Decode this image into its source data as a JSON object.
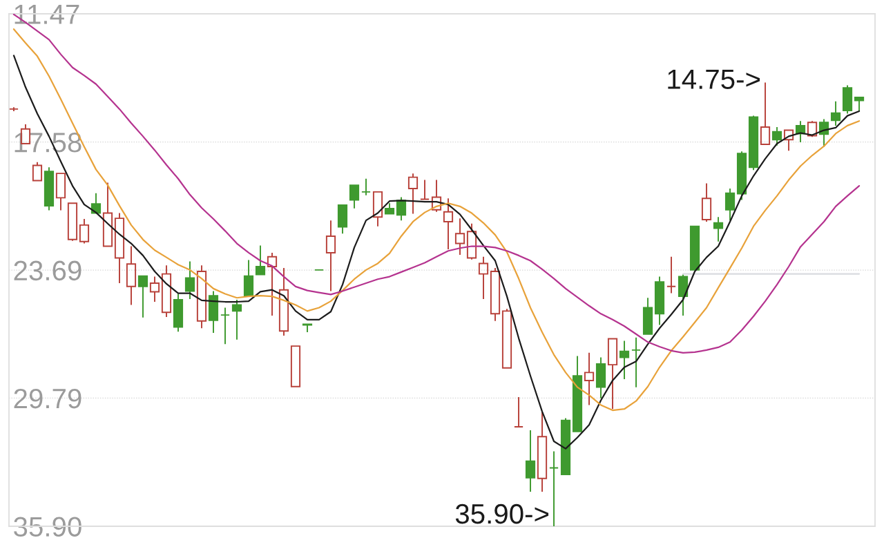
{
  "chart_data": {
    "type": "candlestick",
    "categories": [
      null,
      null,
      null,
      null,
      null,
      null,
      null,
      null,
      null,
      null,
      null,
      null,
      null,
      null,
      null,
      null,
      null,
      null,
      null,
      null,
      null,
      null,
      null,
      null,
      null,
      null,
      null,
      null,
      null,
      null,
      null,
      null,
      null,
      null,
      null,
      null,
      null,
      null,
      null,
      null,
      null,
      null,
      null,
      null,
      null,
      null,
      null,
      null,
      null,
      null,
      null,
      null,
      null,
      null,
      null,
      null,
      null,
      null,
      null,
      null,
      null,
      null,
      null,
      null,
      null,
      null,
      null,
      null,
      null,
      null,
      null,
      null,
      null
    ],
    "ohlc": [
      [
        16.01,
        16.11,
        15.92,
        16.01
      ],
      [
        16.96,
        17.66,
        16.74,
        17.66
      ],
      [
        18.7,
        19.42,
        18.54,
        19.42
      ],
      [
        20.62,
        20.84,
        18.79,
        18.98
      ],
      [
        19.08,
        20.84,
        19.08,
        20.24
      ],
      [
        20.5,
        22.29,
        20.5,
        22.23
      ],
      [
        21.54,
        22.42,
        21.25,
        22.33
      ],
      [
        20.97,
        21.0,
        20.02,
        20.53
      ],
      [
        20.97,
        22.55,
        19.52,
        22.55
      ],
      [
        21.22,
        24.31,
        20.97,
        23.11
      ],
      [
        23.4,
        25.35,
        22.55,
        24.47
      ],
      [
        24.47,
        25.95,
        23.97,
        23.97
      ],
      [
        24.31,
        25.2,
        24.0,
        24.72
      ],
      [
        23.87,
        25.92,
        23.46,
        25.7
      ],
      [
        26.4,
        26.62,
        24.82,
        25.1
      ],
      [
        24.69,
        25.07,
        23.27,
        24.06
      ],
      [
        23.75,
        26.46,
        23.46,
        26.11
      ],
      [
        26.08,
        26.68,
        24.69,
        24.91
      ],
      [
        25.83,
        27.22,
        25.48,
        25.83
      ],
      [
        25.64,
        27.0,
        25.1,
        25.35
      ],
      [
        24.91,
        24.91,
        23.21,
        23.97
      ],
      [
        23.9,
        23.9,
        22.52,
        23.52
      ],
      [
        23.05,
        25.86,
        22.86,
        23.52
      ],
      [
        24.63,
        26.81,
        23.59,
        26.59
      ],
      [
        27.31,
        29.24,
        27.31,
        29.24
      ],
      [
        26.3,
        26.65,
        26.27,
        26.27
      ],
      [
        23.68,
        23.68,
        23.68,
        23.68
      ],
      [
        22.07,
        24.69,
        21.32,
        22.86
      ],
      [
        21.63,
        21.95,
        20.59,
        20.59
      ],
      [
        20.34,
        20.75,
        19.64,
        19.64
      ],
      [
        19.96,
        20.12,
        19.33,
        19.96
      ],
      [
        19.96,
        21.6,
        19.96,
        21.16
      ],
      [
        21.0,
        21.0,
        20.5,
        20.75
      ],
      [
        21.06,
        21.32,
        20.21,
        20.37
      ],
      [
        19.26,
        21.0,
        19.08,
        19.8
      ],
      [
        20.31,
        20.31,
        19.39,
        20.31
      ],
      [
        20.21,
        20.91,
        19.39,
        20.81
      ],
      [
        20.91,
        22.7,
        20.27,
        21.38
      ],
      [
        21.95,
        22.96,
        21.22,
        22.42
      ],
      [
        21.85,
        23.18,
        21.47,
        23.11
      ],
      [
        23.37,
        25.07,
        23.05,
        23.87
      ],
      [
        23.75,
        26.11,
        23.59,
        25.77
      ],
      [
        25.64,
        28.35,
        25.54,
        28.35
      ],
      [
        31.16,
        31.16,
        29.74,
        31.16
      ],
      [
        33.59,
        34.25,
        31.32,
        32.8
      ],
      [
        31.63,
        34.25,
        30.43,
        33.62
      ],
      [
        33.12,
        35.9,
        32.33,
        33.12
      ],
      [
        33.43,
        33.43,
        30.75,
        30.85
      ],
      [
        31.38,
        31.38,
        27.78,
        28.73
      ],
      [
        28.57,
        30.12,
        27.63,
        28.95
      ],
      [
        29.27,
        29.8,
        27.85,
        28.16
      ],
      [
        26.96,
        30.31,
        26.96,
        28.2
      ],
      [
        27.85,
        28.89,
        27.06,
        27.56
      ],
      [
        27.5,
        29.27,
        26.9,
        27.5
      ],
      [
        26.74,
        26.74,
        25.01,
        25.48
      ],
      [
        25.77,
        26.3,
        24.0,
        24.25
      ],
      [
        24.47,
        24.79,
        23.05,
        24.47
      ],
      [
        24.94,
        25.86,
        23.9,
        24.0
      ],
      [
        23.68,
        23.68,
        21.6,
        21.6
      ],
      [
        20.27,
        21.38,
        19.55,
        21.28
      ],
      [
        21.69,
        22.33,
        21.16,
        21.44
      ],
      [
        20.81,
        21.32,
        19.8,
        20.02
      ],
      [
        20.05,
        20.34,
        18.03,
        18.13
      ],
      [
        18.79,
        18.92,
        16.33,
        16.39
      ],
      [
        16.87,
        17.69,
        14.75,
        17.69
      ],
      [
        17.47,
        17.75,
        16.87,
        17.09
      ],
      [
        17.02,
        18.0,
        17.02,
        17.47
      ],
      [
        17.18,
        17.59,
        16.58,
        16.8
      ],
      [
        16.65,
        17.34,
        16.58,
        17.28
      ],
      [
        17.21,
        17.81,
        16.49,
        16.65
      ],
      [
        16.55,
        16.8,
        15.64,
        16.2
      ],
      [
        16.08,
        16.23,
        14.88,
        15.0
      ],
      [
        15.6,
        16.11,
        15.45,
        15.45
      ]
    ],
    "colors": [
      "#b8413a",
      "#b8413a",
      "#b8413a",
      "#3f9a2f",
      "#b8413a",
      "#b8413a",
      "#b8413a",
      "#3f9a2f",
      "#b8413a",
      "#b8413a",
      "#b8413a",
      "#3f9a2f",
      "#b8413a",
      "#b8413a",
      "#3f9a2f",
      "#3f9a2f",
      "#b8413a",
      "#3f9a2f",
      "#3f9a2f",
      "#3f9a2f",
      "#3f9a2f",
      "#3f9a2f",
      "#b8413a",
      "#b8413a",
      "#b8413a",
      "#3f9a2f",
      "#3f9a2f",
      "#b8413a",
      "#3f9a2f",
      "#3f9a2f",
      "#3f9a2f",
      "#b8413a",
      "#3f9a2f",
      "#3f9a2f",
      "#b8413a",
      "#b8413a",
      "#b8413a",
      "#b8413a",
      "#b8413a",
      "#b8413a",
      "#b8413a",
      "#b8413a",
      "#b8413a",
      "#b8413a",
      "#3f9a2f",
      "#b8413a",
      "#3f9a2f",
      "#3f9a2f",
      "#3f9a2f",
      "#b8413a",
      "#3f9a2f",
      "#b8413a",
      "#3f9a2f",
      "#3f9a2f",
      "#3f9a2f",
      "#3f9a2f",
      "#b8413a",
      "#3f9a2f",
      "#3f9a2f",
      "#b8413a",
      "#3f9a2f",
      "#3f9a2f",
      "#3f9a2f",
      "#3f9a2f",
      "#b8413a",
      "#3f9a2f",
      "#b8413a",
      "#3f9a2f",
      "#b8413a",
      "#3f9a2f",
      "#3f9a2f",
      "#3f9a2f",
      "#3f9a2f"
    ],
    "series": [
      {
        "type": "line",
        "color": "#d9dbdf",
        "values": [
          null,
          null,
          null,
          null,
          null,
          null,
          null,
          null,
          null,
          null,
          null,
          null,
          null,
          null,
          null,
          null,
          null,
          null,
          null,
          null,
          null,
          null,
          null,
          null,
          null,
          null,
          null,
          null,
          null,
          null,
          null,
          null,
          null,
          null,
          null,
          null,
          null,
          null,
          null,
          null,
          null,
          null,
          null,
          null,
          null,
          null,
          null,
          null,
          null,
          null,
          null,
          null,
          null,
          null,
          null,
          null,
          null,
          23.87,
          23.87,
          23.87,
          23.87,
          23.87,
          23.87,
          23.87,
          23.87,
          23.87,
          23.87,
          23.87,
          23.87,
          23.87,
          23.87,
          23.87,
          23.87
        ]
      },
      {
        "type": "line",
        "color": "#1c1c1c",
        "values": [
          13.46,
          14.97,
          16.23,
          17.31,
          18.51,
          19.67,
          20.56,
          20.94,
          21.47,
          21.98,
          22.42,
          22.99,
          23.75,
          24.34,
          24.79,
          24.79,
          25.13,
          25.17,
          25.2,
          25.2,
          25.17,
          24.72,
          24.63,
          24.91,
          25.64,
          26.05,
          26.05,
          25.67,
          24.38,
          22.61,
          21.32,
          20.97,
          20.4,
          20.37,
          20.4,
          20.43,
          20.43,
          20.56,
          21.03,
          21.76,
          22.52,
          23.24,
          24.94,
          26.93,
          28.73,
          30.43,
          31.85,
          32.2,
          31.67,
          31.07,
          29.9,
          28.95,
          28.32,
          28.04,
          27.22,
          26.46,
          25.8,
          25.1,
          23.75,
          23.08,
          22.55,
          21.38,
          20.15,
          19.2,
          18.38,
          17.66,
          17.31,
          17.15,
          17.25,
          17.02,
          16.9,
          16.33,
          16.11
        ]
      },
      {
        "type": "line",
        "color": "#e8a23a",
        "values": [
          12.2,
          12.86,
          13.49,
          14.44,
          15.54,
          16.68,
          17.81,
          18.89,
          19.64,
          20.62,
          21.54,
          22.23,
          22.74,
          23.08,
          23.43,
          23.68,
          24.09,
          24.57,
          24.82,
          25.01,
          24.94,
          24.91,
          24.94,
          25.13,
          25.35,
          25.64,
          25.48,
          25.17,
          24.66,
          24.12,
          23.68,
          23.37,
          22.89,
          22.07,
          21.38,
          20.94,
          20.65,
          20.5,
          20.65,
          20.97,
          21.44,
          22.01,
          22.83,
          24.09,
          25.48,
          26.65,
          27.72,
          28.57,
          29.27,
          29.65,
          30.12,
          30.37,
          30.31,
          29.93,
          29.24,
          28.32,
          27.53,
          26.87,
          26.18,
          25.48,
          24.53,
          23.59,
          22.64,
          21.6,
          20.84,
          20.15,
          19.39,
          18.73,
          18.22,
          17.78,
          17.18,
          16.8,
          16.58
        ]
      },
      {
        "type": "line",
        "color": "#b5338f",
        "values": [
          11.5,
          11.88,
          12.29,
          12.7,
          13.4,
          14.03,
          14.41,
          14.82,
          15.41,
          16.01,
          16.68,
          17.31,
          17.97,
          18.67,
          19.33,
          20.09,
          20.72,
          21.25,
          21.82,
          22.42,
          22.86,
          23.24,
          23.49,
          24.0,
          24.47,
          24.66,
          24.76,
          24.85,
          24.69,
          24.5,
          24.31,
          24.12,
          24.0,
          23.78,
          23.56,
          23.34,
          23.05,
          22.77,
          22.64,
          22.55,
          22.55,
          22.61,
          22.77,
          22.99,
          23.24,
          23.65,
          24.09,
          24.57,
          24.98,
          25.39,
          25.77,
          26.05,
          26.36,
          26.74,
          27.12,
          27.34,
          27.53,
          27.63,
          27.6,
          27.5,
          27.37,
          27.12,
          26.55,
          25.89,
          25.17,
          24.38,
          23.52,
          22.58,
          21.98,
          21.38,
          20.65,
          20.15,
          19.67
        ]
      }
    ],
    "ylim": [
      35.9,
      11.47
    ],
    "yticks": [
      11.47,
      17.58,
      23.69,
      29.79,
      {
        "value": 35.9,
        "label": "35.90"
      }
    ],
    "grid": "y",
    "tick_labels": "y",
    "annotations": [
      "14.75->",
      "35.90->"
    ]
  }
}
